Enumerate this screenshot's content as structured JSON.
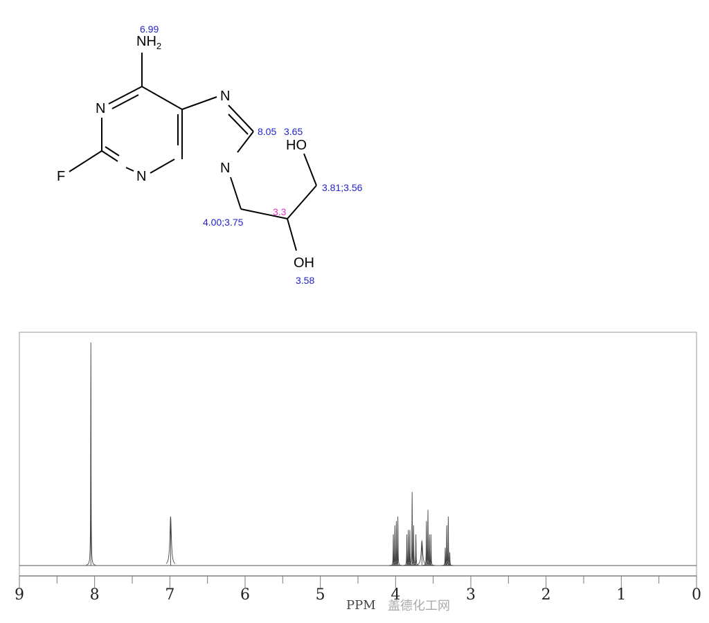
{
  "molecule": {
    "atoms": {
      "nh2": "NH",
      "nh2_sub": "2",
      "n3": "N",
      "n1": "N",
      "f": "F",
      "n7": "N",
      "n9": "N",
      "ho_top": "HO",
      "oh_bottom": "OH"
    },
    "shift_labels": {
      "nh2": "6.99",
      "c8": "8.05",
      "oh_top": "3.65",
      "ch2_oh": "3.81;3.56",
      "ch2_n": "4.00;3.75",
      "ch": "3.3",
      "oh_bottom": "3.58"
    },
    "colors": {
      "shift": "#2222cc",
      "highlight_shift": "#dd33cc"
    }
  },
  "chart_data": {
    "type": "line",
    "title": "",
    "xlabel": "PPM",
    "ylabel": "",
    "xlim": [
      9,
      0
    ],
    "x_reversed": true,
    "grid": false,
    "x_ticks": [
      "9",
      "8",
      "7",
      "6",
      "5",
      "4",
      "3",
      "2",
      "1",
      "0"
    ],
    "peaks": [
      {
        "ppm": 8.05,
        "intensity": 1.0
      },
      {
        "ppm": 6.99,
        "intensity": 0.22,
        "width": 0.012
      },
      {
        "ppm": 4.03,
        "intensity": 0.14
      },
      {
        "ppm": 4.01,
        "intensity": 0.18
      },
      {
        "ppm": 3.99,
        "intensity": 0.2
      },
      {
        "ppm": 3.97,
        "intensity": 0.22
      },
      {
        "ppm": 3.85,
        "intensity": 0.14
      },
      {
        "ppm": 3.83,
        "intensity": 0.16
      },
      {
        "ppm": 3.81,
        "intensity": 0.16
      },
      {
        "ppm": 3.78,
        "intensity": 0.33
      },
      {
        "ppm": 3.76,
        "intensity": 0.18
      },
      {
        "ppm": 3.73,
        "intensity": 0.14
      },
      {
        "ppm": 3.65,
        "intensity": 0.11,
        "width": 0.012
      },
      {
        "ppm": 3.59,
        "intensity": 0.2
      },
      {
        "ppm": 3.57,
        "intensity": 0.25
      },
      {
        "ppm": 3.55,
        "intensity": 0.14
      },
      {
        "ppm": 3.53,
        "intensity": 0.14
      },
      {
        "ppm": 3.34,
        "intensity": 0.08
      },
      {
        "ppm": 3.32,
        "intensity": 0.18
      },
      {
        "ppm": 3.3,
        "intensity": 0.22
      },
      {
        "ppm": 3.28,
        "intensity": 0.06
      }
    ]
  },
  "watermark": "盖德化工网"
}
